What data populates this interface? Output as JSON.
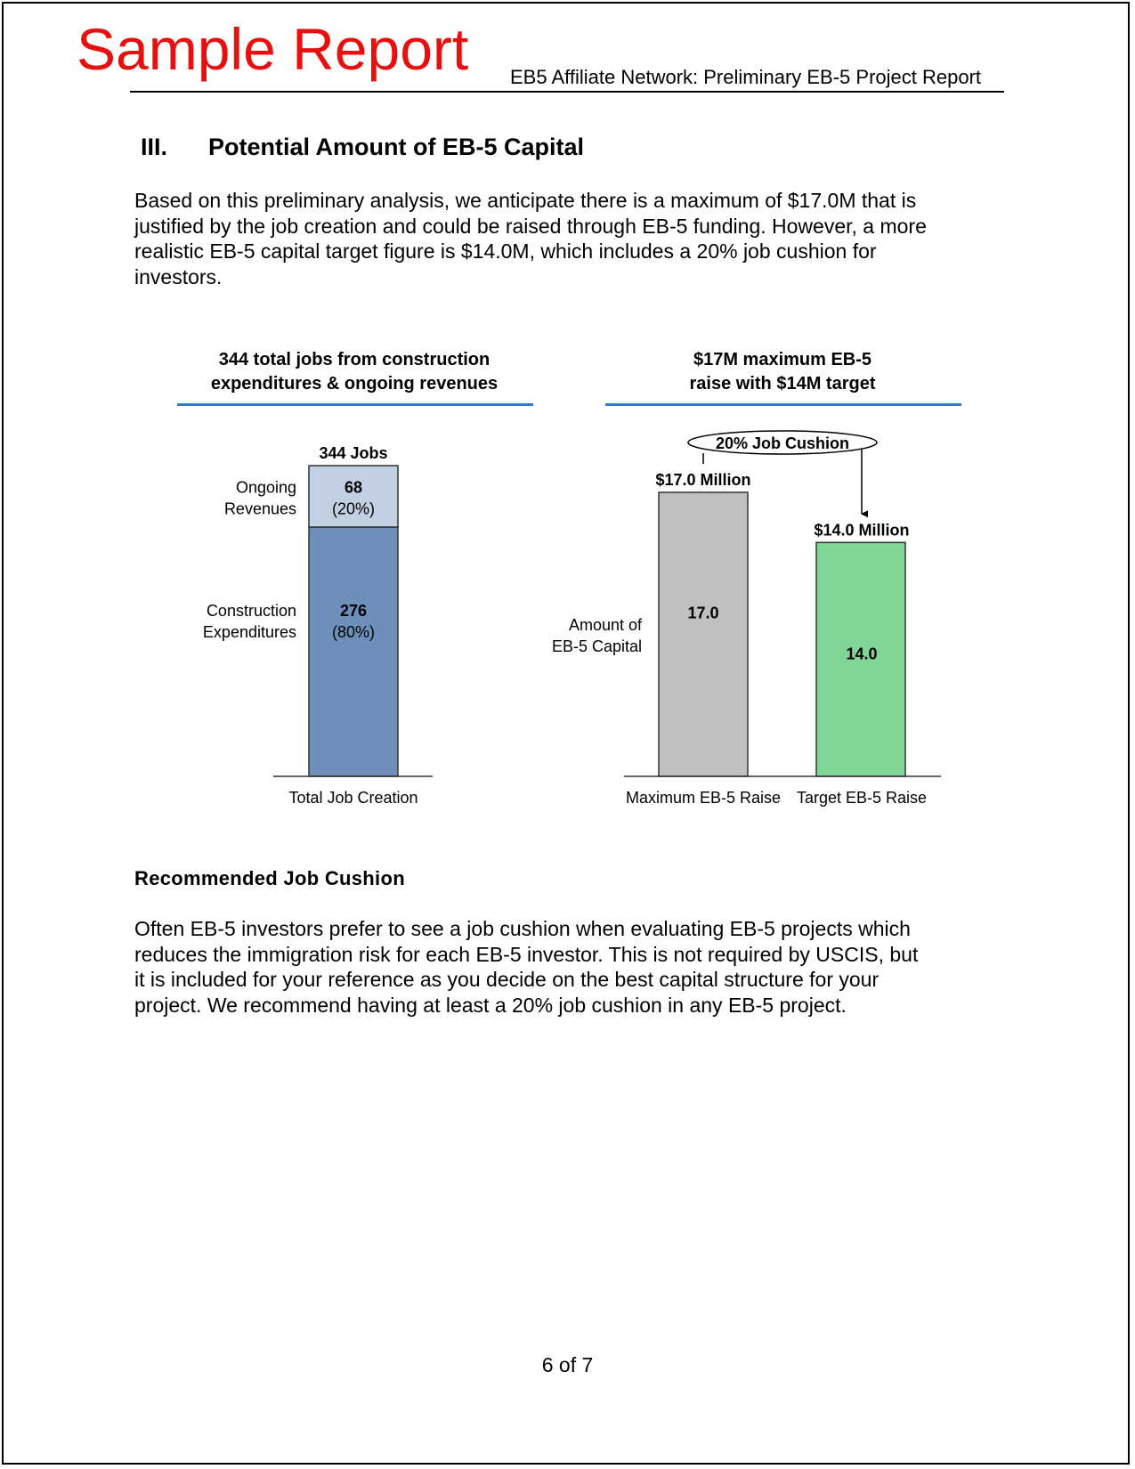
{
  "watermark": "Sample Report",
  "header": {
    "title": "EB5 Affiliate Network: Preliminary EB-5 Project Report"
  },
  "section": {
    "number": "III.",
    "title": "Potential Amount of EB-5 Capital"
  },
  "intro_lines": [
    "Based on this preliminary analysis, we anticipate there is a maximum of $17.0M that is",
    "justified by the job creation and could be raised through EB-5 funding. However, a more",
    "realistic EB-5 capital target figure is $14.0M, which includes a 20% job cushion for",
    "investors."
  ],
  "chart_data": [
    {
      "type": "bar",
      "stacked": true,
      "title": [
        "344 total jobs from construction",
        "expenditures & ongoing revenues"
      ],
      "categories": [
        "Total Job Creation"
      ],
      "total_label": "344 Jobs",
      "total": 344,
      "series": [
        {
          "name": "Construction Expenditures",
          "label_lines": [
            "Construction",
            "Expenditures"
          ],
          "values": [
            276
          ],
          "value_label": "276",
          "pct_label": "(80%)",
          "color": "#6e8fba"
        },
        {
          "name": "Ongoing Revenues",
          "label_lines": [
            "Ongoing",
            "Revenues"
          ],
          "values": [
            68
          ],
          "value_label": "68",
          "pct_label": "(20%)",
          "color": "#c3cfe2"
        }
      ],
      "title_rule_color": "#2e7dc4"
    },
    {
      "type": "bar",
      "title": [
        "$17M maximum EB-5",
        "raise with $14M target"
      ],
      "ylabel": [
        "Amount of",
        "EB-5 Capital"
      ],
      "categories": [
        "Maximum EB-5 Raise",
        "Target EB-5 Raise"
      ],
      "values": [
        17.0,
        14.0
      ],
      "value_labels": [
        "17.0",
        "14.0"
      ],
      "top_labels": [
        "$17.0 Million",
        "$14.0 Million"
      ],
      "colors": [
        "#c0c0c0",
        "#7fd696"
      ],
      "annotation": "20% Job Cushion",
      "title_rule_color": "#2e7dc4"
    }
  ],
  "subheading": "Recommended Job Cushion",
  "body_lines": [
    "Often EB-5 investors prefer to see a job cushion when evaluating EB-5 projects which",
    "reduces the immigration risk for each EB-5 investor. This is not required by USCIS, but",
    "it is included for your reference as you decide on the best capital structure for your",
    "project. We recommend having at least a 20% job cushion in any EB-5 project."
  ],
  "footer": {
    "page": "6 of 7"
  }
}
